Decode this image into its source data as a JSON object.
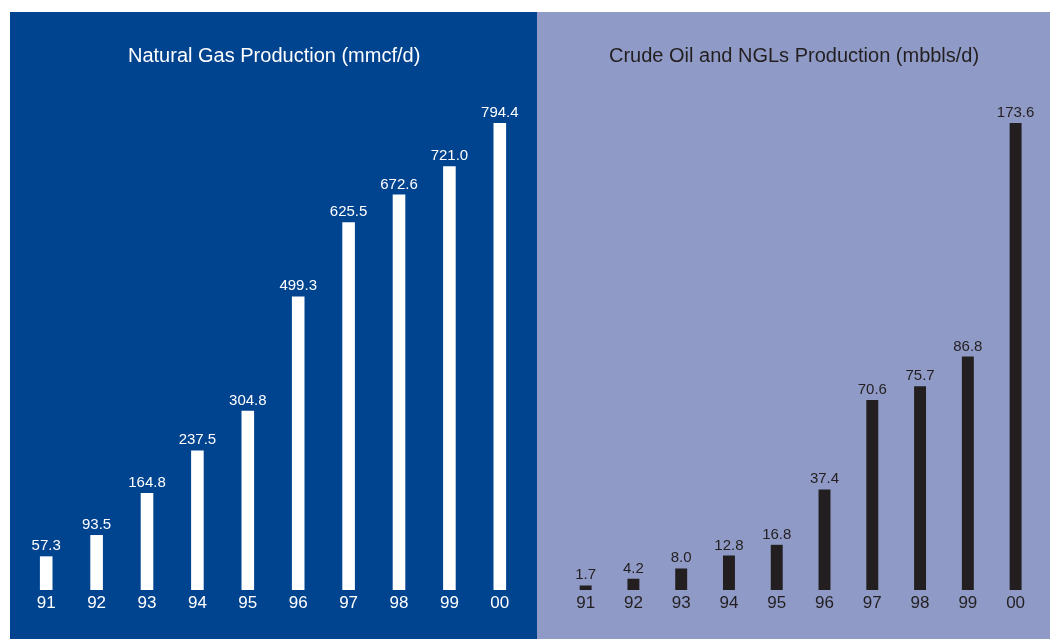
{
  "chart_data": [
    {
      "type": "bar",
      "title": "Natural Gas Production (mmcf/d)",
      "categories": [
        "91",
        "92",
        "93",
        "94",
        "95",
        "96",
        "97",
        "98",
        "99",
        "00"
      ],
      "values": [
        57.3,
        93.5,
        164.8,
        237.5,
        304.8,
        499.3,
        625.5,
        672.6,
        721.0,
        794.4
      ],
      "color": "#ffffff",
      "data_labels": true,
      "value_labels": [
        "57.3",
        "93.5",
        "164.8",
        "237.5",
        "304.8",
        "499.3",
        "625.5",
        "672.6",
        "721.0",
        "794.4"
      ]
    },
    {
      "type": "bar",
      "title": "Crude Oil and NGLs Production (mbbls/d)",
      "categories": [
        "91",
        "92",
        "93",
        "94",
        "95",
        "96",
        "97",
        "98",
        "99",
        "00"
      ],
      "values": [
        1.7,
        4.2,
        8.0,
        12.8,
        16.8,
        37.4,
        70.6,
        75.7,
        86.8,
        173.6
      ],
      "color": "#231f20",
      "data_labels": true,
      "value_labels": [
        "1.7",
        "4.2",
        "8.0",
        "12.8",
        "16.8",
        "37.4",
        "70.6",
        "75.7",
        "86.8",
        "173.6"
      ]
    }
  ]
}
